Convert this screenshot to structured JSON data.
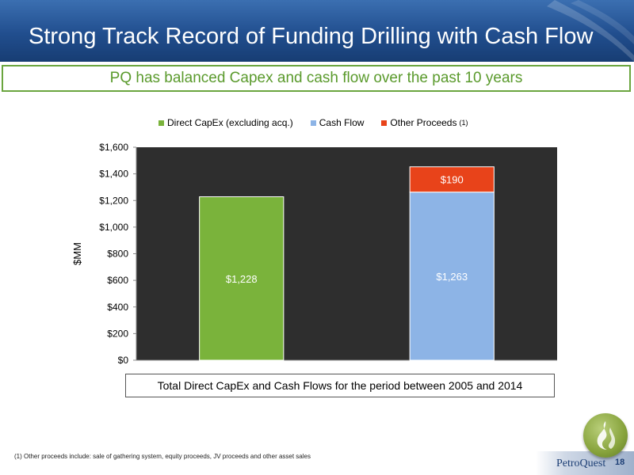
{
  "header": {
    "title": "Strong Track Record of Funding Drilling with Cash Flow"
  },
  "subtitle": "PQ has balanced Capex and cash flow over the past 10 years",
  "legend": {
    "items": [
      {
        "label": "Direct CapEx (excluding acq.)",
        "color": "#7ab33b"
      },
      {
        "label": "Cash Flow",
        "color": "#8db4e6"
      },
      {
        "label": "Other Proceeds",
        "color": "#e8431a",
        "note": "(1)"
      }
    ]
  },
  "chart_data": {
    "type": "bar",
    "stacked": true,
    "ylabel": "$MM",
    "ylim": [
      0,
      1600
    ],
    "yticks": [
      "$0",
      "$200",
      "$400",
      "$600",
      "$800",
      "$1,000",
      "$1,200",
      "$1,400",
      "$1,600"
    ],
    "ytick_values": [
      0,
      200,
      400,
      600,
      800,
      1000,
      1200,
      1400,
      1600
    ],
    "grid": false,
    "legend_position": "top",
    "bars": [
      {
        "segments": [
          {
            "series": "Direct CapEx (excluding acq.)",
            "value": 1228,
            "label": "$1,228",
            "color": "#7ab33b"
          }
        ]
      },
      {
        "segments": [
          {
            "series": "Cash Flow",
            "value": 1263,
            "label": "$1,263",
            "color": "#8db4e6"
          },
          {
            "series": "Other Proceeds",
            "value": 190,
            "label": "$190",
            "color": "#e8431a"
          }
        ]
      }
    ],
    "plot_background": "#2e2e2e"
  },
  "caption": "Total Direct CapEx and Cash Flows for the period between 2005 and 2014",
  "footnote": "(1) Other proceeds include: sale of gathering system, equity proceeds, JV proceeds and other asset sales",
  "footer": {
    "brand": "PetroQuest",
    "page": "18"
  }
}
